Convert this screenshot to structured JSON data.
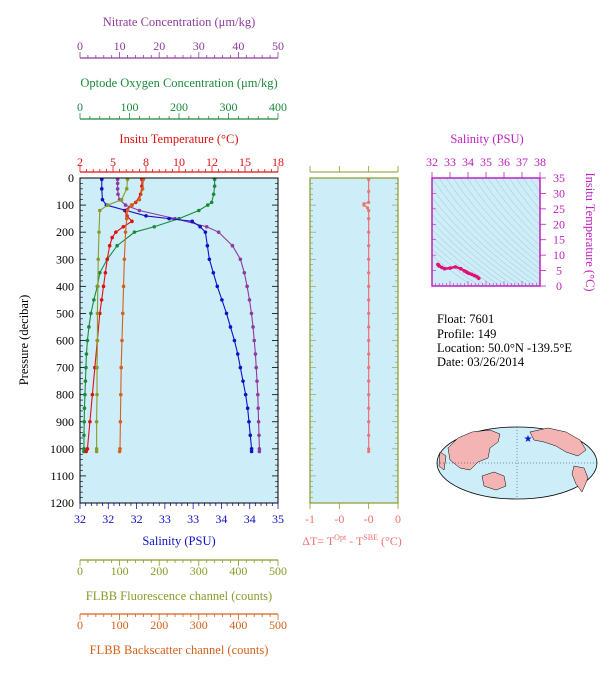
{
  "colors": {
    "nitrate": "#8e3a9e",
    "oxygen": "#1a8a3a",
    "temperature": "#e01010",
    "salinity": "#1010c8",
    "fluorescence": "#8a9a2a",
    "backscatter": "#d4601a",
    "delta_t": "#f07070",
    "ts_axis": "#c020c0",
    "ts_data": "#e0107a",
    "plot_bg": "#cdeef8",
    "map_land": "#f4b4b4",
    "map_ocean": "#cdeef8",
    "float_marker": "#1010e0"
  },
  "info": {
    "float": "Float:  7601",
    "profile": "Profile:  149",
    "location": "Location:  50.0°N  -139.5°E",
    "date": "Date:  03/26/2014"
  },
  "chart_data": [
    {
      "type": "line",
      "ylabel": "Pressure (decibar)",
      "ylim": [
        1200,
        0
      ],
      "yticks": [
        "0",
        "100",
        "200",
        "300",
        "400",
        "500",
        "600",
        "700",
        "800",
        "900",
        "1000",
        "1100",
        "1200"
      ],
      "axes": {
        "nitrate": {
          "label": "Nitrate Concentration (μm/kg)",
          "range": [
            0,
            50
          ],
          "ticks": [
            "0",
            "10",
            "20",
            "30",
            "40",
            "50"
          ]
        },
        "oxygen": {
          "label": "Optode Oxygen Concentration (μm/kg)",
          "range": [
            0,
            400
          ],
          "ticks": [
            "0",
            "100",
            "200",
            "300",
            "400"
          ]
        },
        "temperature": {
          "label": "Insitu Temperature (°C)",
          "range": [
            2,
            18
          ],
          "ticks": [
            "2",
            "5",
            "8",
            "10",
            "12",
            "15",
            "18"
          ]
        },
        "salinity": {
          "label": "Salinity (PSU)",
          "range": [
            32,
            35
          ],
          "ticks": [
            "32",
            "32",
            "32",
            "33",
            "33",
            "34",
            "34",
            "35"
          ]
        },
        "fluorescence": {
          "label": "FLBB Fluorescence channel (counts)",
          "range": [
            0,
            500
          ],
          "ticks": [
            "0",
            "100",
            "200",
            "300",
            "400",
            "500"
          ]
        },
        "backscatter": {
          "label": "FLBB Backscatter channel (counts)",
          "range": [
            0,
            500
          ],
          "ticks": [
            "0",
            "100",
            "200",
            "300",
            "400",
            "500"
          ]
        }
      },
      "series": [
        {
          "name": "Nitrate",
          "axis": "nitrate",
          "color_key": "nitrate",
          "pressure": [
            5,
            20,
            40,
            60,
            80,
            100,
            120,
            150,
            180,
            200,
            250,
            300,
            350,
            400,
            450,
            500,
            550,
            600,
            650,
            700,
            750,
            800,
            850,
            900,
            950,
            1000,
            1010
          ],
          "values": [
            9.5,
            9.5,
            9.5,
            9.6,
            10.0,
            11.5,
            15.0,
            24.0,
            32.0,
            35.0,
            38.5,
            40.5,
            41.5,
            42.2,
            42.8,
            43.3,
            43.7,
            44.0,
            44.3,
            44.5,
            44.7,
            44.9,
            45.0,
            45.1,
            45.2,
            45.3,
            45.3
          ]
        },
        {
          "name": "Oxygen",
          "axis": "oxygen",
          "color_key": "oxygen",
          "pressure": [
            5,
            30,
            60,
            90,
            100,
            120,
            150,
            180,
            200,
            250,
            300,
            350,
            400,
            450,
            500,
            550,
            600,
            650,
            700,
            750,
            800,
            850,
            900,
            950,
            1000,
            1010
          ],
          "values": [
            272,
            272,
            270,
            266,
            258,
            240,
            200,
            150,
            110,
            75,
            55,
            40,
            35,
            28,
            22,
            18,
            15,
            13,
            12,
            11,
            10,
            9,
            8.5,
            8,
            8,
            8
          ]
        },
        {
          "name": "Temperature",
          "axis": "temperature",
          "color_key": "temperature",
          "pressure": [
            5,
            30,
            60,
            90,
            100,
            120,
            140,
            160,
            180,
            200,
            220,
            250,
            300,
            350,
            400,
            450,
            500,
            600,
            700,
            800,
            900,
            1000,
            1010
          ],
          "values": [
            7.0,
            7.0,
            6.9,
            6.5,
            6.2,
            5.6,
            5.8,
            6.2,
            5.5,
            4.9,
            4.6,
            4.4,
            4.2,
            4.05,
            3.9,
            3.75,
            3.6,
            3.4,
            3.2,
            3.0,
            2.8,
            2.6,
            2.5
          ]
        },
        {
          "name": "Salinity",
          "axis": "salinity",
          "color_key": "salinity",
          "pressure": [
            5,
            40,
            80,
            100,
            120,
            140,
            150,
            160,
            180,
            200,
            250,
            300,
            350,
            400,
            450,
            500,
            550,
            600,
            650,
            700,
            750,
            800,
            850,
            900,
            950,
            1000,
            1010
          ],
          "values": [
            32.33,
            32.33,
            32.34,
            32.4,
            32.7,
            33.0,
            33.35,
            33.7,
            33.82,
            33.9,
            33.93,
            33.96,
            34.02,
            34.08,
            34.15,
            34.22,
            34.28,
            34.34,
            34.39,
            34.43,
            34.47,
            34.51,
            34.54,
            34.56,
            34.58,
            34.6,
            34.6
          ]
        },
        {
          "name": "Fluorescence",
          "axis": "fluorescence",
          "color_key": "fluorescence",
          "pressure": [
            5,
            40,
            80,
            100,
            120,
            200,
            300,
            400,
            500,
            600,
            700,
            800,
            900,
            1000,
            1010
          ],
          "values": [
            120,
            118,
            105,
            70,
            50,
            48,
            46,
            45,
            44,
            44,
            43,
            43,
            42,
            42,
            42
          ]
        },
        {
          "name": "Backscatter",
          "axis": "backscatter",
          "color_key": "backscatter",
          "pressure": [
            5,
            40,
            80,
            100,
            120,
            150,
            200,
            300,
            400,
            500,
            600,
            700,
            800,
            900,
            1000,
            1010
          ],
          "values": [
            160,
            158,
            150,
            130,
            120,
            118,
            115,
            112,
            110,
            108,
            106,
            104,
            103,
            102,
            101,
            100
          ]
        }
      ]
    },
    {
      "type": "line",
      "xlabel": "ΔT= T",
      "xlabel_sup1": "Opt",
      "xlabel_mid": " - T",
      "xlabel_sup2": "SBE",
      "xlabel_unit": " (°C)",
      "xlim": [
        -1,
        0.5
      ],
      "xticks": [
        "-1",
        "-0",
        "-0",
        "0"
      ],
      "ylim": [
        1200,
        0
      ],
      "series": [
        {
          "name": "ΔT",
          "color_key": "delta_t",
          "pressure": [
            5,
            50,
            90,
            95,
            100,
            110,
            120,
            150,
            200,
            250,
            300,
            350,
            400,
            450,
            500,
            550,
            600,
            650,
            700,
            750,
            800,
            850,
            900,
            950,
            1000,
            1010
          ],
          "values": [
            0.0,
            0.0,
            0.0,
            -0.08,
            -0.08,
            -0.02,
            0.0,
            0.0,
            0.0,
            0.0,
            0.0,
            0.0,
            0.0,
            0.0,
            0.0,
            0.0,
            0.0,
            0.0,
            0.0,
            0.0,
            0.0,
            0.0,
            0.0,
            0.0,
            0.0,
            0.0
          ]
        }
      ]
    },
    {
      "type": "scatter",
      "title": "Salinity (PSU)",
      "ylabel": "Insitu Temperature (°C)",
      "xlim": [
        32,
        38
      ],
      "ylim": [
        0,
        35
      ],
      "xticks": [
        "32",
        "33",
        "34",
        "35",
        "36",
        "37",
        "38"
      ],
      "yticks": [
        "0",
        "5",
        "10",
        "15",
        "20",
        "25",
        "30",
        "35"
      ],
      "series": [
        {
          "name": "T-S",
          "color_key": "ts_data",
          "x": [
            32.33,
            32.34,
            32.4,
            32.55,
            32.7,
            33.0,
            33.3,
            33.6,
            33.8,
            33.9,
            33.95,
            34.05,
            34.2,
            34.35,
            34.5,
            34.6
          ],
          "y": [
            7.0,
            6.9,
            6.5,
            6.0,
            5.6,
            5.8,
            6.2,
            5.6,
            4.9,
            4.6,
            4.4,
            4.1,
            3.8,
            3.4,
            3.0,
            2.5
          ]
        }
      ]
    }
  ]
}
